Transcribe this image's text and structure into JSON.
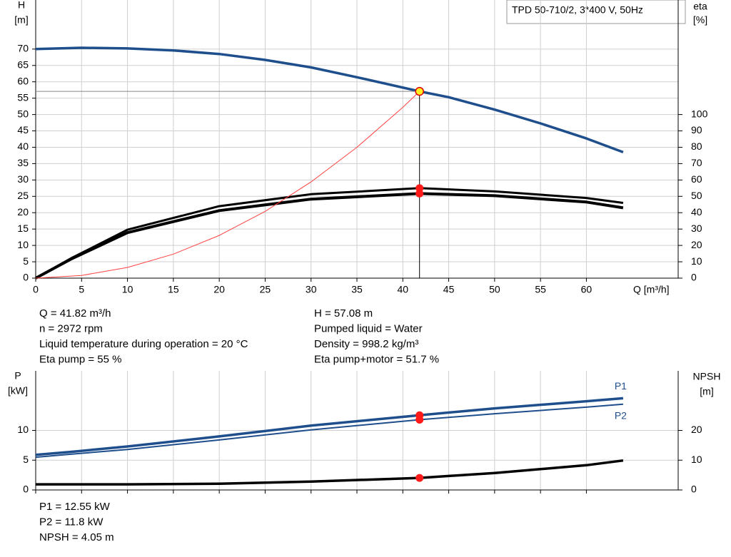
{
  "chart_data": [
    {
      "type": "line",
      "box_label": "TPD 50-710/2, 3*400 V, 50Hz",
      "ylabel": "H",
      "yunit": "[m]",
      "y2label": "eta",
      "y2unit": "[%]",
      "xlabel": "Q [m³/h]",
      "xlim": [
        0,
        70
      ],
      "xticks": [
        0,
        5,
        10,
        15,
        20,
        25,
        30,
        35,
        40,
        45,
        50,
        55,
        60
      ],
      "ylim": [
        0,
        85
      ],
      "yticks": [
        0,
        5,
        10,
        15,
        20,
        25,
        30,
        35,
        40,
        45,
        50,
        55,
        60,
        65,
        70
      ],
      "y2lim": [
        0,
        170
      ],
      "y2ticks": [
        0,
        10,
        20,
        30,
        40,
        50,
        60,
        70,
        80,
        90,
        100
      ],
      "grid": true,
      "operating_x": 41.82,
      "series": [
        {
          "color": "#1f4e8c",
          "marker_color": "#ffee22",
          "x": [
            0,
            5,
            10,
            15,
            20,
            25,
            30,
            35,
            41.82,
            45,
            50,
            55,
            60,
            64
          ],
          "values": [
            70,
            70.4,
            70.2,
            69.6,
            68.5,
            66.7,
            64.4,
            61.4,
            57.08,
            55.3,
            51.5,
            47.3,
            42.7,
            38.5
          ]
        },
        {
          "color": "#000000",
          "marker_color": "#ff1a1a",
          "axis": "y2",
          "x": [
            0,
            3.8,
            10,
            20,
            30,
            41.82,
            50,
            60,
            64
          ],
          "values": [
            0,
            12,
            29.6,
            44,
            51.3,
            55,
            53,
            49,
            46
          ]
        },
        {
          "color": "#000000",
          "marker_color": "#ff1a1a",
          "axis": "y2",
          "x": [
            0,
            3.8,
            10,
            20,
            30,
            41.82,
            50,
            60,
            64
          ],
          "values": [
            0,
            11.5,
            27.8,
            41.3,
            48.3,
            51.7,
            50.4,
            46.5,
            43
          ]
        },
        {
          "color": "#ff4040",
          "x": [
            0,
            5,
            10,
            15,
            20,
            25,
            30,
            35,
            40,
            41.82
          ],
          "values": [
            0,
            0.82,
            3.26,
            7.34,
            13.06,
            20.4,
            29.4,
            40.0,
            52.2,
            57.08
          ]
        }
      ],
      "notes_left": [
        "Q = 41.82 m³/h",
        "n = 2972 rpm",
        "Liquid temperature during operation = 20 °C",
        "Eta pump = 55 %"
      ],
      "notes_right": [
        "H = 57.08 m",
        "Pumped liquid = Water",
        "Density = 998.2 kg/m³",
        "Eta pump+motor = 51.7 %"
      ]
    },
    {
      "type": "line",
      "ylabel": "P",
      "yunit": "[kW]",
      "y2label": "NPSH",
      "y2unit": "[m]",
      "xlim": [
        0,
        70
      ],
      "xticks": [
        0,
        5,
        10,
        15,
        20,
        25,
        30,
        35,
        40,
        45,
        50,
        55,
        60
      ],
      "ylim": [
        0,
        20
      ],
      "yticks": [
        0,
        5,
        10
      ],
      "y2lim": [
        0,
        40
      ],
      "y2ticks": [
        0,
        10,
        20
      ],
      "grid": true,
      "operating_x": 41.82,
      "series": [
        {
          "name": "P1",
          "color": "#1f4e8c",
          "marker_color": "#ff1a1a",
          "x": [
            0,
            3.8,
            10,
            20,
            30,
            41.82,
            50,
            60,
            64
          ],
          "values": [
            5.9,
            6.4,
            7.3,
            9.0,
            10.8,
            12.55,
            13.7,
            14.9,
            15.4
          ]
        },
        {
          "name": "P2",
          "color": "#1f4e8c",
          "marker_color": "#ff1a1a",
          "x": [
            0,
            3.8,
            10,
            20,
            30,
            41.82,
            50,
            60,
            64
          ],
          "values": [
            5.5,
            6.0,
            6.8,
            8.4,
            10.1,
            11.8,
            12.8,
            13.9,
            14.4
          ]
        },
        {
          "color": "#000000",
          "marker_color": "#ff1a1a",
          "axis": "y2",
          "x": [
            0,
            3.8,
            10,
            20,
            30,
            41.82,
            50,
            60,
            64
          ],
          "values": [
            1.9,
            1.9,
            1.9,
            2.1,
            2.8,
            4.05,
            5.7,
            8.3,
            9.9
          ]
        }
      ],
      "notes_left": [
        "P1 = 12.55 kW",
        "P2 = 11.8 kW",
        "NPSH = 4.05 m"
      ]
    }
  ]
}
